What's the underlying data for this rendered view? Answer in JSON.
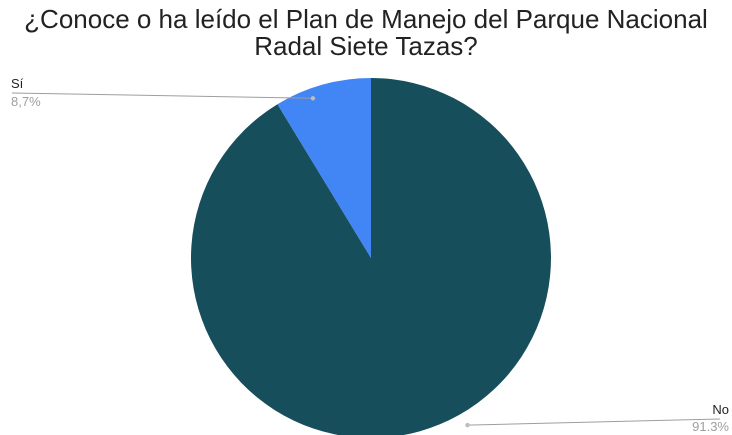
{
  "chart_data": {
    "type": "pie",
    "title": "¿Conoce o ha leído el Plan de Manejo del Parque Nacional Radal Siete Tazas?",
    "title_lines": [
      "¿Conoce o ha leído el Plan de Manejo del Parque Nacional",
      "Radal Siete Tazas?"
    ],
    "categories": [
      "No",
      "Sí"
    ],
    "values": [
      91.3,
      8.7
    ],
    "value_labels": [
      "91.3%",
      "8,7%"
    ],
    "colors": [
      "#174e5c",
      "#4285f4"
    ],
    "label_color": "#222222",
    "percent_color": "#9e9e9e",
    "leader_line_color": "#9e9e9e",
    "start_angle_deg": 0,
    "direction": "clockwise",
    "legend": "none"
  }
}
